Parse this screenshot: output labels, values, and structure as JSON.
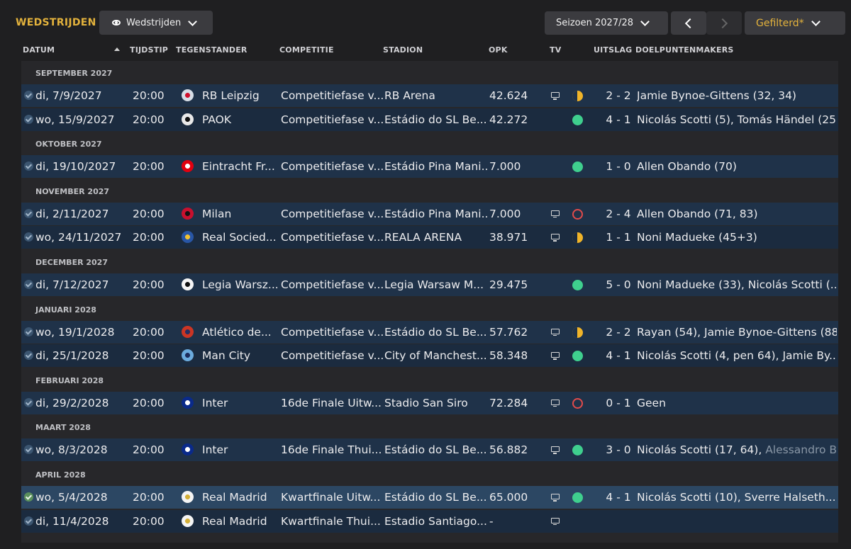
{
  "header": {
    "title": "WEDSTRIJDEN",
    "view_label": "Wedstrijden",
    "season_label": "Seizoen 2027/28",
    "filter_label": "Gefilterd*"
  },
  "columns": {
    "datum": "DATUM",
    "tijdstip": "TIJDSTIP",
    "tegenstander": "TEGENSTANDER",
    "competitie": "COMPETITIE",
    "stadion": "STADION",
    "opk": "OPK",
    "tv": "TV",
    "uitslag": "UITSLAG",
    "doelpuntenmakers": "DOELPUNTENMAKERS"
  },
  "months": [
    "SEPTEMBER 2027",
    "OKTOBER 2027",
    "NOVEMBER 2027",
    "DECEMBER 2027",
    "JANUARI 2028",
    "FEBRUARI 2028",
    "MAART 2028",
    "APRIL 2028"
  ],
  "matches": [
    {
      "date": "di, 7/9/2027",
      "time": "20:00",
      "opponent": "RB Leipzig",
      "competition": "Competitiefase v...",
      "stadium": "RB Arena",
      "att": "42.624",
      "tv": true,
      "result": "D",
      "score": "2 - 2",
      "scorers": "Jamie Bynoe-Gittens (32, 34)",
      "scorers_extra": "",
      "crest_color": "#d6dde6",
      "crest_accent": "#d0102c"
    },
    {
      "date": "wo, 15/9/2027",
      "time": "20:00",
      "opponent": "PAOK",
      "competition": "Competitiefase v...",
      "stadium": "Estádio do SL Be...",
      "att": "42.272",
      "tv": false,
      "result": "W",
      "score": "4 - 1",
      "scorers": "Nicolás Scotti (5), Tomás Händel (25...",
      "scorers_extra": "",
      "crest_color": "#e8e8e8",
      "crest_accent": "#111111"
    },
    {
      "date": "di, 19/10/2027",
      "time": "20:00",
      "opponent": "Eintracht Fr...",
      "competition": "Competitiefase v...",
      "stadium": "Estádio Pina Mani...",
      "att": "7.000",
      "tv": false,
      "result": "W",
      "score": "1 - 0",
      "scorers": "Allen Obando (70)",
      "scorers_extra": "",
      "crest_color": "#e1000f",
      "crest_accent": "#ffffff"
    },
    {
      "date": "di, 2/11/2027",
      "time": "20:00",
      "opponent": "Milan",
      "competition": "Competitiefase v...",
      "stadium": "Estádio Pina Mani...",
      "att": "7.000",
      "tv": true,
      "result": "L",
      "score": "2 - 4",
      "scorers": "Allen Obando (71, 83)",
      "scorers_extra": "",
      "crest_color": "#c8102e",
      "crest_accent": "#111111"
    },
    {
      "date": "wo, 24/11/2027",
      "time": "20:00",
      "opponent": "Real Socied...",
      "competition": "Competitiefase v...",
      "stadium": "REALA ARENA",
      "att": "38.971",
      "tv": true,
      "result": "D",
      "score": "1 - 1",
      "scorers": "Noni Madueke (45+3)",
      "scorers_extra": "",
      "crest_color": "#2856a6",
      "crest_accent": "#f2c230"
    },
    {
      "date": "di, 7/12/2027",
      "time": "20:00",
      "opponent": "Legia Warsz...",
      "competition": "Competitiefase v...",
      "stadium": "Legia Warsaw M...",
      "att": "29.475",
      "tv": false,
      "result": "W",
      "score": "5 - 0",
      "scorers": "Noni Madueke (33), Nicolás Scotti (...",
      "scorers_extra": "",
      "crest_color": "#f5f5f5",
      "crest_accent": "#111111"
    },
    {
      "date": "wo, 19/1/2028",
      "time": "20:00",
      "opponent": "Atlético de...",
      "competition": "Competitiefase v...",
      "stadium": "Estádio do SL Be...",
      "att": "57.762",
      "tv": true,
      "result": "D",
      "score": "2 - 2",
      "scorers": "Rayan (54), Jamie Bynoe-Gittens (88)",
      "scorers_extra": "",
      "crest_color": "#cb3524",
      "crest_accent": "#272e61"
    },
    {
      "date": "di, 25/1/2028",
      "time": "20:00",
      "opponent": "Man City",
      "competition": "Competitiefase v...",
      "stadium": "City of Manchest...",
      "att": "58.348",
      "tv": true,
      "result": "W",
      "score": "4 - 1",
      "scorers": "Nicolás Scotti (4, pen 64), Jamie By...",
      "scorers_extra": "",
      "crest_color": "#6cabdd",
      "crest_accent": "#1c2c5b"
    },
    {
      "date": "di, 29/2/2028",
      "time": "20:00",
      "opponent": "Inter",
      "competition": "16de Finale  Uitw...",
      "stadium": "Stadio San Siro",
      "att": "72.284",
      "tv": true,
      "result": "L",
      "score": "0 - 1",
      "scorers": "Geen",
      "scorers_extra": "",
      "crest_color": "#0a2a8a",
      "crest_accent": "#ffffff"
    },
    {
      "date": "wo, 8/3/2028",
      "time": "20:00",
      "opponent": "Inter",
      "competition": "16de Finale  Thui...",
      "stadium": "Estádio do SL Be...",
      "att": "56.882",
      "tv": true,
      "result": "W",
      "score": "3 - 0",
      "scorers": "Nicolás Scotti (17, 64), ",
      "scorers_extra": "Alessandro B...",
      "crest_color": "#0a2a8a",
      "crest_accent": "#ffffff"
    },
    {
      "date": "wo, 5/4/2028",
      "time": "20:00",
      "opponent": "Real Madrid",
      "competition": "Kwartfinale Uitw...",
      "stadium": "Estádio do SL Be...",
      "att": "65.000",
      "tv": true,
      "result": "W",
      "score": "4 - 1",
      "scorers": "Nicolás Scotti (10), Sverre Halseth...",
      "scorers_extra": "",
      "crest_color": "#f4f4f4",
      "crest_accent": "#d4af37"
    },
    {
      "date": "di, 11/4/2028",
      "time": "20:00",
      "opponent": "Real Madrid",
      "competition": "Kwartfinale Thui...",
      "stadium": "Estadio Santiago...",
      "att": "-",
      "tv": true,
      "result": "",
      "score": "",
      "scorers": "",
      "scorers_extra": "",
      "crest_color": "#f4f4f4",
      "crest_accent": "#d4af37"
    }
  ]
}
